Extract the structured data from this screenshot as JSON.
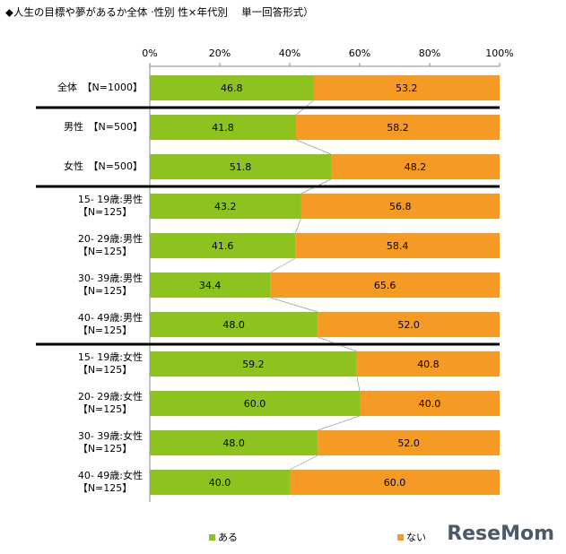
{
  "chart_data": {
    "type": "stacked-barh",
    "title": "◆人生の目標や夢があるか全体 ·性別 性×年代別　 単一回答形式）",
    "categories": [
      "全体　【N=1000】",
      "男性　【N=500】",
      "女性　【N=500】",
      "15- 19歳:男性\n【N=125】",
      "20- 29歳:男性\n【N=125】",
      "30- 39歳:男性\n【N=125】",
      "40- 49歳:男性\n【N=125】",
      "15- 19歳:女性\n【N=125】",
      "20- 29歳:女性\n【N=125】",
      "30- 39歳:女性\n【N=125】",
      "40- 49歳:女性\n【N=125】"
    ],
    "series": [
      {
        "name": "ある",
        "color": "#8dc21f",
        "values": [
          46.8,
          41.8,
          51.8,
          43.2,
          41.6,
          34.4,
          48.0,
          59.2,
          60.0,
          48.0,
          40.0
        ],
        "value_labels": [
          "46.8",
          "41.8",
          "51.8",
          "43.2",
          "41.6",
          "34.4",
          "48.0",
          "59.2",
          "60.0",
          "48.0",
          "40.0"
        ]
      },
      {
        "name": "ない",
        "color": "#f59a23",
        "values": [
          53.2,
          58.2,
          48.2,
          56.8,
          58.4,
          65.6,
          52.0,
          40.8,
          40.0,
          52.0,
          60.0
        ],
        "value_labels": [
          "53.2",
          "58.2",
          "48.2",
          "56.8",
          "58.4",
          "65.6",
          "52.0",
          "40.8",
          "40.0",
          "52.0",
          "60.0"
        ]
      }
    ],
    "xlim": [
      0,
      100
    ],
    "xticks": [
      {
        "value": 0,
        "label": "0%"
      },
      {
        "value": 20,
        "label": "20%"
      },
      {
        "value": 40,
        "label": "40%"
      },
      {
        "value": 60,
        "label": "60%"
      },
      {
        "value": 80,
        "label": "80%"
      },
      {
        "value": 100,
        "label": "100%"
      }
    ],
    "grid": false,
    "watermark": "ReseMom"
  }
}
